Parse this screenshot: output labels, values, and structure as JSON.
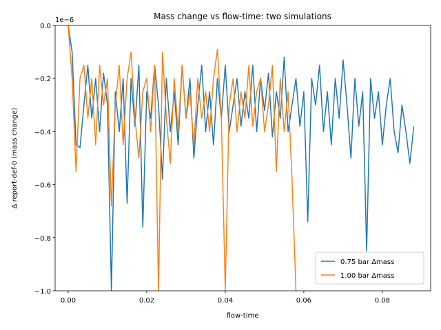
{
  "chart_data": {
    "type": "line",
    "title": "Mass change vs flow-time: two simulations",
    "x_label": "flow-time",
    "y_label": "Δ report-def-0 (mass change)",
    "y_offset_label": "1e−6",
    "x": [
      0,
      0.001,
      0.002,
      0.003,
      0.004,
      0.005,
      0.006,
      0.007,
      0.008,
      0.009,
      0.01,
      0.011,
      0.012,
      0.013,
      0.014,
      0.015,
      0.016,
      0.017,
      0.018,
      0.019,
      0.02,
      0.021,
      0.022,
      0.023,
      0.024,
      0.025,
      0.026,
      0.027,
      0.028,
      0.029,
      0.03,
      0.031,
      0.032,
      0.033,
      0.034,
      0.035,
      0.036,
      0.037,
      0.038,
      0.039,
      0.04,
      0.041,
      0.042,
      0.043,
      0.044,
      0.045,
      0.046,
      0.047,
      0.048,
      0.049,
      0.05,
      0.051,
      0.052,
      0.053,
      0.054,
      0.055,
      0.056,
      0.057,
      0.058,
      0.059,
      0.06,
      0.061,
      0.062,
      0.063,
      0.064,
      0.065,
      0.066,
      0.067,
      0.068,
      0.069,
      0.07,
      0.071,
      0.072,
      0.073,
      0.074,
      0.075,
      0.076,
      0.077,
      0.078,
      0.079,
      0.08,
      0.081,
      0.082,
      0.083,
      0.084,
      0.085,
      0.086,
      0.087,
      0.088
    ],
    "series": [
      {
        "name": "0.75 bar Δmass",
        "color": "#1f77b4",
        "values": [
          0,
          -0.1,
          -0.45,
          -0.46,
          -0.3,
          -0.15,
          -0.35,
          -0.2,
          -0.4,
          -0.18,
          -0.3,
          -1.0,
          -0.25,
          -0.4,
          -0.2,
          -0.67,
          -0.2,
          -0.38,
          -0.15,
          -0.76,
          -0.25,
          -0.35,
          -0.15,
          -0.3,
          -0.58,
          -0.2,
          -0.4,
          -0.25,
          -0.45,
          -0.15,
          -0.35,
          -0.2,
          -0.5,
          -0.3,
          -0.15,
          -0.4,
          -0.25,
          -0.45,
          -0.2,
          -0.35,
          -0.15,
          -0.4,
          -0.3,
          -0.2,
          -0.38,
          -0.25,
          -0.35,
          -0.15,
          -0.4,
          -0.2,
          -0.32,
          -0.18,
          -0.42,
          -0.25,
          -0.35,
          -0.12,
          -0.4,
          -0.3,
          -0.2,
          -0.38,
          -0.25,
          -0.74,
          -0.2,
          -0.3,
          -0.15,
          -0.4,
          -0.25,
          -0.45,
          -0.2,
          -0.35,
          -0.13,
          -0.3,
          -0.5,
          -0.2,
          -0.38,
          -0.25,
          -0.85,
          -0.2,
          -0.35,
          -0.25,
          -0.45,
          -0.3,
          -0.2,
          -0.4,
          -0.48,
          -0.3,
          -0.4,
          -0.52,
          -0.38
        ]
      },
      {
        "name": "1.00 bar Δmass",
        "color": "#ff7f0e",
        "values": [
          0,
          -0.2,
          -0.55,
          -0.2,
          -0.15,
          -0.35,
          -0.2,
          -0.45,
          -0.15,
          -0.3,
          -0.2,
          -0.68,
          -0.3,
          -0.15,
          -0.45,
          -0.2,
          -0.1,
          -0.35,
          -0.5,
          -0.25,
          -0.2,
          -0.4,
          -0.15,
          -1.0,
          -0.1,
          -0.35,
          -0.52,
          -0.2,
          -0.4,
          -0.15,
          -0.35,
          -0.25,
          -0.45,
          -0.2,
          -0.35,
          -0.25,
          -0.4,
          -0.2,
          -0.09,
          -0.35,
          -1.0,
          -0.3,
          -0.2,
          -0.4,
          -0.25,
          -0.35,
          -0.15,
          -0.38,
          -0.25,
          -0.2,
          -0.4,
          -0.3,
          -0.15,
          -0.55,
          -0.2,
          -0.4,
          -0.25,
          -0.58,
          -1.0,
          null,
          null,
          null,
          null,
          null,
          null,
          null,
          null,
          null,
          null,
          null,
          null,
          null,
          null,
          null,
          null,
          null,
          null,
          null,
          null,
          null,
          null,
          null,
          null,
          null,
          null,
          null,
          null,
          null,
          null
        ]
      }
    ],
    "xlim": [
      -0.00333,
      0.0923
    ],
    "ylim": [
      -1.0,
      0.0
    ],
    "xticks": [
      {
        "value": 0,
        "label": "0.00"
      },
      {
        "value": 0.02,
        "label": "0.02"
      },
      {
        "value": 0.04,
        "label": "0.04"
      },
      {
        "value": 0.06,
        "label": "0.06"
      },
      {
        "value": 0.08,
        "label": "0.08"
      }
    ],
    "yticks": [
      {
        "value": -1.0,
        "label": "−1.0"
      },
      {
        "value": -0.8,
        "label": "−0.8"
      },
      {
        "value": -0.6,
        "label": "−0.6"
      },
      {
        "value": -0.4,
        "label": "−0.4"
      },
      {
        "value": -0.2,
        "label": "−0.2"
      },
      {
        "value": 0.0,
        "label": "0.0"
      }
    ],
    "legend": "lower right"
  }
}
